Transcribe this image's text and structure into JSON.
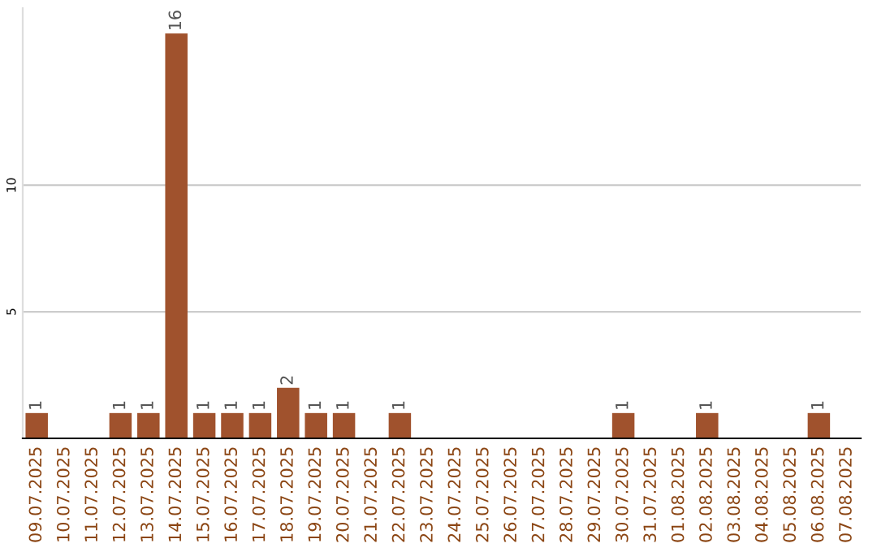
{
  "chart_data": {
    "type": "bar",
    "categories": [
      "09.07.2025",
      "10.07.2025",
      "11.07.2025",
      "12.07.2025",
      "13.07.2025",
      "14.07.2025",
      "15.07.2025",
      "16.07.2025",
      "17.07.2025",
      "18.07.2025",
      "19.07.2025",
      "20.07.2025",
      "21.07.2025",
      "22.07.2025",
      "23.07.2025",
      "24.07.2025",
      "25.07.2025",
      "26.07.2025",
      "27.07.2025",
      "28.07.2025",
      "29.07.2025",
      "30.07.2025",
      "31.07.2025",
      "01.08.2025",
      "02.08.2025",
      "03.08.2025",
      "04.08.2025",
      "05.08.2025",
      "06.08.2025",
      "07.08.2025"
    ],
    "values": [
      1,
      0,
      0,
      1,
      1,
      16,
      1,
      1,
      1,
      2,
      1,
      1,
      0,
      1,
      0,
      0,
      0,
      0,
      0,
      0,
      0,
      1,
      0,
      0,
      1,
      0,
      0,
      0,
      1,
      0
    ],
    "value_labels": [
      "1",
      null,
      null,
      "1",
      "1",
      "16",
      "1",
      "1",
      "1",
      "2",
      "1",
      "1",
      null,
      "1",
      null,
      null,
      null,
      null,
      null,
      null,
      null,
      "1",
      null,
      null,
      "1",
      null,
      null,
      null,
      "1",
      null
    ],
    "color": "#a0522d",
    "ylim": [
      0,
      17
    ],
    "yticks": [
      5,
      10
    ],
    "grid": "y"
  }
}
